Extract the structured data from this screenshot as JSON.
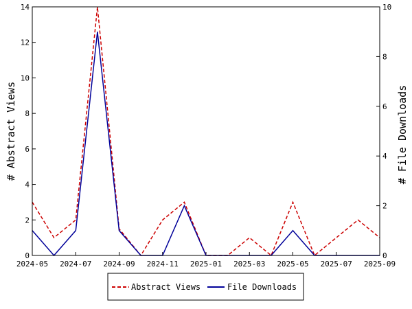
{
  "chart_data": {
    "type": "line",
    "x": [
      "2024-05",
      "2024-06",
      "2024-07",
      "2024-08",
      "2024-09",
      "2024-10",
      "2024-11",
      "2024-12",
      "2025-01",
      "2025-02",
      "2025-03",
      "2025-04",
      "2025-05",
      "2025-06",
      "2025-07",
      "2025-08",
      "2025-09"
    ],
    "x_ticks": [
      "2024-05",
      "2024-07",
      "2024-09",
      "2024-11",
      "2025-01",
      "2025-03",
      "2025-05",
      "2025-07",
      "2025-09"
    ],
    "ylabel_left": "# Abstract Views",
    "ylabel_right": "# File Downloads",
    "ylim_left": [
      0,
      14
    ],
    "ylim_right": [
      0,
      10
    ],
    "yticks_left": [
      0,
      2,
      4,
      6,
      8,
      10,
      12,
      14
    ],
    "yticks_right": [
      0,
      2,
      4,
      6,
      8,
      10
    ],
    "series": [
      {
        "name": "Abstract Views",
        "axis": "left",
        "color": "#cc0000",
        "style": "dashed",
        "values": [
          3,
          1,
          2,
          14,
          1.5,
          0,
          2,
          3,
          0,
          0,
          1,
          0,
          3,
          0,
          1,
          2,
          1
        ]
      },
      {
        "name": "File Downloads",
        "axis": "right",
        "color": "#000099",
        "style": "solid",
        "values": [
          1,
          0,
          1,
          9,
          1,
          0,
          0,
          2,
          0,
          0,
          0,
          0,
          1,
          0,
          0,
          0,
          0
        ]
      }
    ],
    "legend_position": "bottom-center",
    "grid": false
  }
}
